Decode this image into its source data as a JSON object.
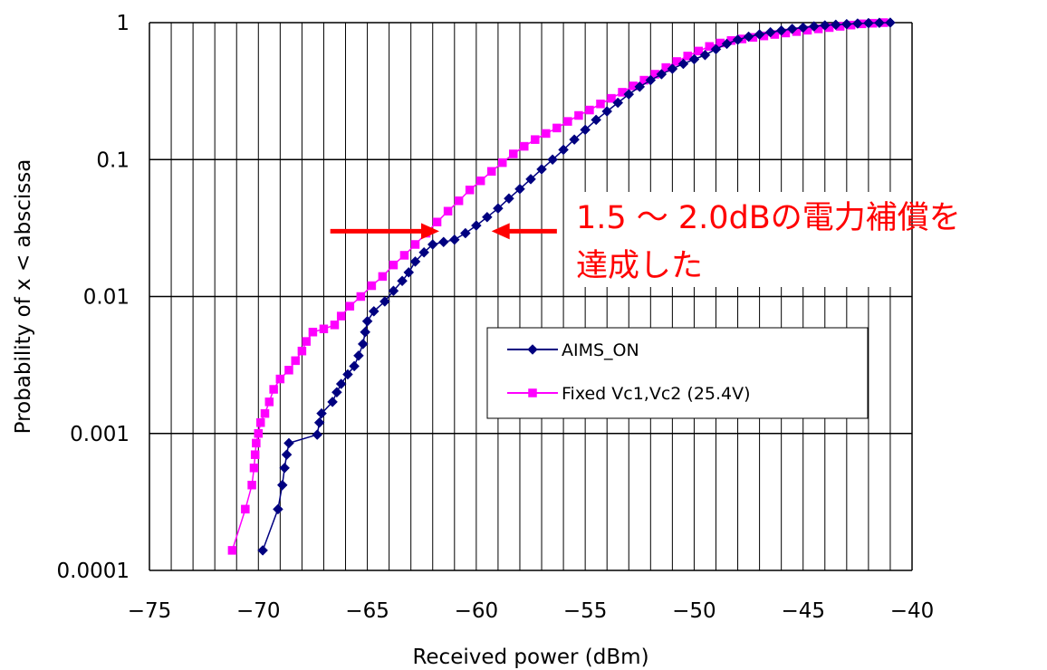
{
  "chart_data": {
    "type": "line",
    "title": "",
    "xlabel": "Received power (dBm)",
    "ylabel": "Probability of x < abscissa",
    "xlim": [
      -75,
      -40
    ],
    "ylim": [
      0.0001,
      1
    ],
    "y_scale": "log",
    "x_tick_labels": [
      "−75",
      "−70",
      "−65",
      "−60",
      "−55",
      "−50",
      "−45",
      "−40"
    ],
    "y_tick_labels": [
      "0.0001",
      "0.001",
      "0.01",
      "0.1",
      "1"
    ],
    "grid": "vertical lines every 1 dBm, horizontal lines at each decade",
    "legend_position": "center-right",
    "series": [
      {
        "name": "AIMS_ON",
        "color": "#000080",
        "marker": "diamond",
        "points": [
          [
            -69.8,
            0.00014
          ],
          [
            -69.1,
            0.00028
          ],
          [
            -68.9,
            0.00042
          ],
          [
            -68.8,
            0.00056
          ],
          [
            -68.7,
            0.0007
          ],
          [
            -68.6,
            0.00085
          ],
          [
            -67.3,
            0.00098
          ],
          [
            -67.2,
            0.0012
          ],
          [
            -67.1,
            0.0014
          ],
          [
            -66.6,
            0.0017
          ],
          [
            -66.4,
            0.002
          ],
          [
            -66.2,
            0.0023
          ],
          [
            -65.9,
            0.0027
          ],
          [
            -65.6,
            0.0031
          ],
          [
            -65.4,
            0.0037
          ],
          [
            -65.2,
            0.0045
          ],
          [
            -65.1,
            0.0055
          ],
          [
            -65.0,
            0.0066
          ],
          [
            -64.7,
            0.0078
          ],
          [
            -64.2,
            0.0092
          ],
          [
            -63.8,
            0.011
          ],
          [
            -63.4,
            0.013
          ],
          [
            -63.1,
            0.015
          ],
          [
            -62.8,
            0.018
          ],
          [
            -62.4,
            0.021
          ],
          [
            -62.0,
            0.024
          ],
          [
            -61.5,
            0.025
          ],
          [
            -61.0,
            0.026
          ],
          [
            -60.5,
            0.029
          ],
          [
            -60.0,
            0.033
          ],
          [
            -59.5,
            0.038
          ],
          [
            -59.0,
            0.044
          ],
          [
            -58.5,
            0.052
          ],
          [
            -58.0,
            0.061
          ],
          [
            -57.5,
            0.072
          ],
          [
            -57.0,
            0.085
          ],
          [
            -56.5,
            0.1
          ],
          [
            -56.0,
            0.118
          ],
          [
            -55.5,
            0.14
          ],
          [
            -55.0,
            0.165
          ],
          [
            -54.5,
            0.195
          ],
          [
            -54.0,
            0.225
          ],
          [
            -53.5,
            0.26
          ],
          [
            -53.0,
            0.3
          ],
          [
            -52.5,
            0.34
          ],
          [
            -52.0,
            0.38
          ],
          [
            -51.5,
            0.42
          ],
          [
            -51.0,
            0.46
          ],
          [
            -50.5,
            0.5
          ],
          [
            -50.0,
            0.54
          ],
          [
            -49.5,
            0.58
          ],
          [
            -49.0,
            0.64
          ],
          [
            -48.5,
            0.7
          ],
          [
            -48.0,
            0.75
          ],
          [
            -47.5,
            0.79
          ],
          [
            -47.0,
            0.82
          ],
          [
            -46.5,
            0.85
          ],
          [
            -46.0,
            0.875
          ],
          [
            -45.5,
            0.9
          ],
          [
            -45.0,
            0.92
          ],
          [
            -44.5,
            0.94
          ],
          [
            -44.0,
            0.955
          ],
          [
            -43.5,
            0.965
          ],
          [
            -43.0,
            0.975
          ],
          [
            -42.5,
            0.985
          ],
          [
            -42.0,
            0.992
          ],
          [
            -41.5,
            0.997
          ],
          [
            -41.0,
            1.0
          ]
        ]
      },
      {
        "name": "Fixed Vc1,Vc2 (25.4V)",
        "color": "#ff00ff",
        "marker": "square",
        "points": [
          [
            -71.2,
            0.00014
          ],
          [
            -70.6,
            0.00028
          ],
          [
            -70.3,
            0.00042
          ],
          [
            -70.2,
            0.00056
          ],
          [
            -70.15,
            0.0007
          ],
          [
            -70.1,
            0.00085
          ],
          [
            -70.0,
            0.001
          ],
          [
            -69.9,
            0.0012
          ],
          [
            -69.7,
            0.0014
          ],
          [
            -69.5,
            0.0017
          ],
          [
            -69.3,
            0.0021
          ],
          [
            -69.0,
            0.0025
          ],
          [
            -68.6,
            0.0029
          ],
          [
            -68.3,
            0.0034
          ],
          [
            -68.0,
            0.004
          ],
          [
            -67.8,
            0.0047
          ],
          [
            -67.5,
            0.0055
          ],
          [
            -67.0,
            0.0058
          ],
          [
            -66.5,
            0.0062
          ],
          [
            -66.2,
            0.0072
          ],
          [
            -65.8,
            0.0085
          ],
          [
            -65.3,
            0.01
          ],
          [
            -64.8,
            0.012
          ],
          [
            -64.3,
            0.014
          ],
          [
            -63.8,
            0.017
          ],
          [
            -63.3,
            0.02
          ],
          [
            -62.8,
            0.024
          ],
          [
            -62.3,
            0.029
          ],
          [
            -61.8,
            0.035
          ],
          [
            -61.3,
            0.042
          ],
          [
            -60.8,
            0.05
          ],
          [
            -60.3,
            0.06
          ],
          [
            -59.8,
            0.07
          ],
          [
            -59.3,
            0.082
          ],
          [
            -58.8,
            0.095
          ],
          [
            -58.3,
            0.11
          ],
          [
            -57.8,
            0.125
          ],
          [
            -57.3,
            0.14
          ],
          [
            -56.8,
            0.155
          ],
          [
            -56.3,
            0.17
          ],
          [
            -55.8,
            0.19
          ],
          [
            -55.3,
            0.21
          ],
          [
            -54.8,
            0.23
          ],
          [
            -54.3,
            0.255
          ],
          [
            -53.8,
            0.28
          ],
          [
            -53.3,
            0.31
          ],
          [
            -52.8,
            0.345
          ],
          [
            -52.3,
            0.38
          ],
          [
            -51.8,
            0.42
          ],
          [
            -51.3,
            0.47
          ],
          [
            -50.8,
            0.52
          ],
          [
            -50.3,
            0.57
          ],
          [
            -49.8,
            0.62
          ],
          [
            -49.3,
            0.67
          ],
          [
            -48.8,
            0.71
          ],
          [
            -48.3,
            0.74
          ],
          [
            -47.8,
            0.76
          ],
          [
            -47.3,
            0.78
          ],
          [
            -46.8,
            0.8
          ],
          [
            -46.3,
            0.82
          ],
          [
            -45.8,
            0.84
          ],
          [
            -45.3,
            0.86
          ],
          [
            -44.8,
            0.88
          ],
          [
            -44.3,
            0.9
          ],
          [
            -43.8,
            0.92
          ],
          [
            -43.3,
            0.94
          ],
          [
            -42.8,
            0.96
          ],
          [
            -42.3,
            0.98
          ],
          [
            -41.8,
            0.99
          ],
          [
            -41.3,
            1.0
          ]
        ]
      }
    ],
    "annotations": [
      {
        "text": "1.5 〜 2.0dBの電力補償を",
        "color": "#ff0000"
      },
      {
        "text": "達成した",
        "color": "#ff0000"
      }
    ],
    "arrows": [
      {
        "direction": "right",
        "color": "#ff0000",
        "from_x": -66.7,
        "to_x": -61.7,
        "y": 0.03
      },
      {
        "direction": "left",
        "color": "#ff0000",
        "from_x": -56.3,
        "to_x": -59.3,
        "y": 0.03
      }
    ]
  }
}
